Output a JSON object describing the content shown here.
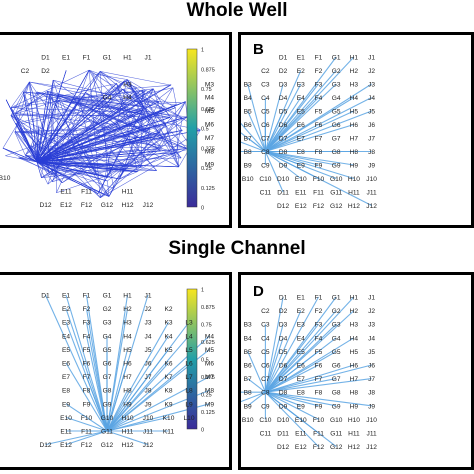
{
  "titles": {
    "top": "Whole Well",
    "bottom": "Single Channel"
  },
  "panel_labels": {
    "b": "B",
    "d": "D"
  },
  "colorbar_ticks": [
    "1",
    "0.875",
    "0.75",
    "0.625",
    "0.5",
    "0.375",
    "0.25",
    "0.125",
    "0"
  ],
  "colors": {
    "colorbar_top": "#f7e61f",
    "colorbar_mid": "#21a0a8",
    "colorbar_bottom": "#3b2c9a",
    "edge_dense": "#2b3fd6",
    "edge_light": "#5aa5e3"
  },
  "chart_data": [
    {
      "type": "network",
      "panel": "A",
      "mode": "dense",
      "visible_labels": [
        "D1",
        "E1",
        "F1",
        "G1",
        "H1",
        "J1",
        "C2",
        "D2",
        "G4",
        "H4",
        "H3",
        "M3",
        "M4",
        "M5",
        "M6",
        "M7",
        "M8",
        "M9",
        "B10",
        "E11",
        "F11",
        "H11",
        "D12",
        "E12",
        "F12",
        "G12",
        "H12",
        "J12"
      ]
    },
    {
      "type": "network",
      "panel": "B",
      "mode": "hub",
      "hub": "C8",
      "visible_labels": [
        "D1",
        "E1",
        "F1",
        "G1",
        "H1",
        "J1",
        "C2",
        "D2",
        "E2",
        "F2",
        "G2",
        "H2",
        "J2",
        "B3",
        "C3",
        "D3",
        "E3",
        "F3",
        "G3",
        "H3",
        "J3",
        "A4",
        "B4",
        "C4",
        "D4",
        "E4",
        "F4",
        "G4",
        "H4",
        "J4",
        "A5",
        "B5",
        "C5",
        "D5",
        "E5",
        "F5",
        "G5",
        "H5",
        "J5",
        "A6",
        "B6",
        "C6",
        "D6",
        "E6",
        "F6",
        "G6",
        "H6",
        "J6",
        "A7",
        "B7",
        "C7",
        "D7",
        "E7",
        "F7",
        "G7",
        "H7",
        "J7",
        "A8",
        "B8",
        "C8",
        "D8",
        "E8",
        "F8",
        "G8",
        "H8",
        "J8",
        "A9",
        "B9",
        "C9",
        "D9",
        "E9",
        "F9",
        "G9",
        "H9",
        "J9",
        "B10",
        "C10",
        "D10",
        "E10",
        "F10",
        "G10",
        "H10",
        "J10",
        "C11",
        "D11",
        "E11",
        "F11",
        "G11",
        "H11",
        "J11",
        "D12",
        "E12",
        "F12",
        "G12",
        "H12",
        "J12"
      ]
    },
    {
      "type": "network",
      "panel": "C",
      "mode": "hub",
      "hub": "G11",
      "visible_labels": [
        "D1",
        "E1",
        "F1",
        "G1",
        "H1",
        "J1",
        "E2",
        "F2",
        "G2",
        "H2",
        "J2",
        "K2",
        "E3",
        "F3",
        "G3",
        "H3",
        "J3",
        "K3",
        "L3",
        "E4",
        "F4",
        "G4",
        "H4",
        "J4",
        "K4",
        "L4",
        "M4",
        "E5",
        "F5",
        "G5",
        "H5",
        "J5",
        "K5",
        "L5",
        "M5",
        "E6",
        "F6",
        "G6",
        "H6",
        "J6",
        "K6",
        "L6",
        "M6",
        "E7",
        "F7",
        "G7",
        "H7",
        "J7",
        "K7",
        "L7",
        "M7",
        "E8",
        "F8",
        "G8",
        "H8",
        "J8",
        "K8",
        "L8",
        "M8",
        "E9",
        "F9",
        "G9",
        "H9",
        "J9",
        "K9",
        "L9",
        "M9",
        "E10",
        "F10",
        "G10",
        "H10",
        "J10",
        "K10",
        "L10",
        "E11",
        "F11",
        "G11",
        "H11",
        "J11",
        "K11",
        "D12",
        "E12",
        "F12",
        "G12",
        "H12",
        "J12"
      ]
    },
    {
      "type": "network",
      "panel": "D",
      "mode": "hub",
      "hub": "C8",
      "visible_labels": [
        "D1",
        "E1",
        "F1",
        "G1",
        "H1",
        "J1",
        "C2",
        "D2",
        "E2",
        "F2",
        "G2",
        "H2",
        "J2",
        "B3",
        "C3",
        "D3",
        "E3",
        "F3",
        "G3",
        "H3",
        "J3",
        "A4",
        "B4",
        "C4",
        "D4",
        "E4",
        "F4",
        "G4",
        "H4",
        "J4",
        "A5",
        "B5",
        "C5",
        "D5",
        "E5",
        "F5",
        "G5",
        "H5",
        "J5",
        "A6",
        "B6",
        "C6",
        "D6",
        "E6",
        "F6",
        "G6",
        "H6",
        "J6",
        "A7",
        "B7",
        "C7",
        "D7",
        "E7",
        "F7",
        "G7",
        "H7",
        "J7",
        "A8",
        "B8",
        "C8",
        "D8",
        "E8",
        "F8",
        "G8",
        "H8",
        "J8",
        "A9",
        "B9",
        "C9",
        "D9",
        "E9",
        "F9",
        "G9",
        "H9",
        "J9",
        "B10",
        "C10",
        "D10",
        "E10",
        "F10",
        "G10",
        "H10",
        "J10",
        "C11",
        "D11",
        "E11",
        "F11",
        "G11",
        "H11",
        "J11",
        "D12",
        "E12",
        "F12",
        "G12",
        "H12",
        "J12"
      ]
    }
  ]
}
